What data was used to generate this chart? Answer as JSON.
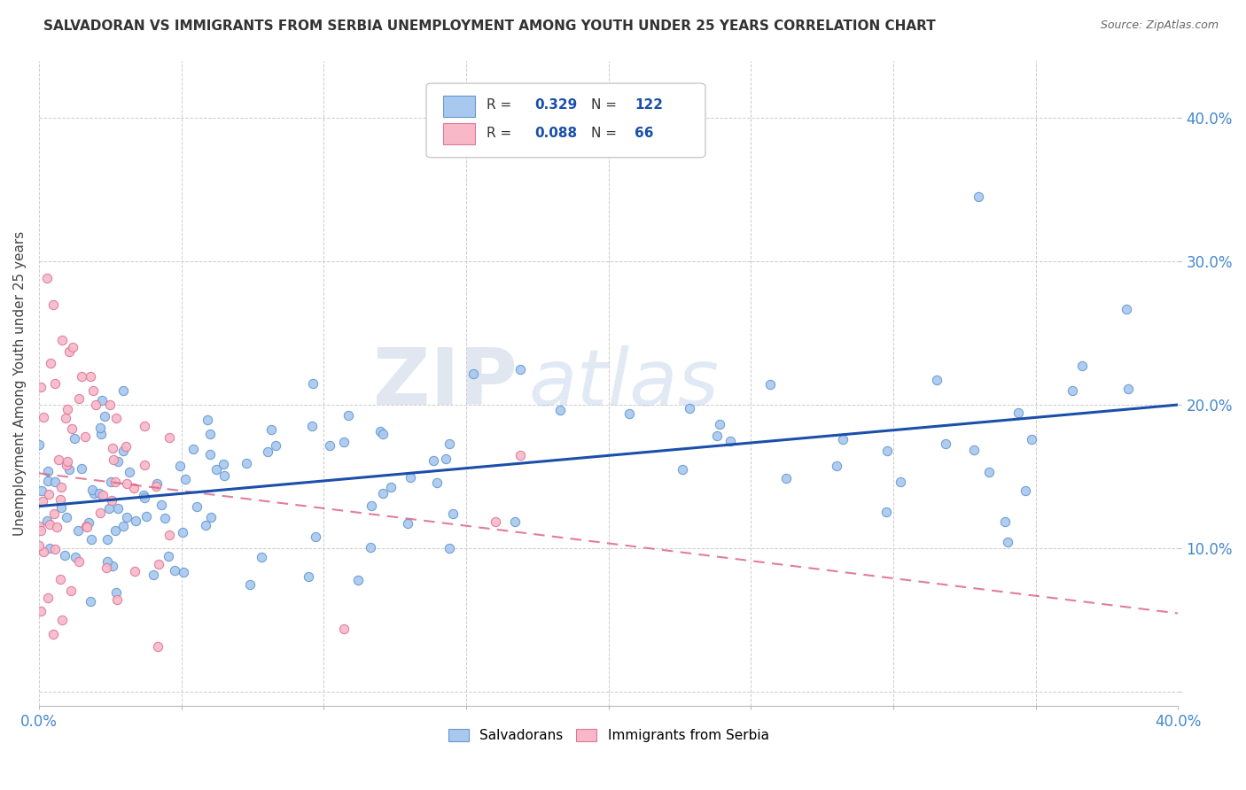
{
  "title": "SALVADORAN VS IMMIGRANTS FROM SERBIA UNEMPLOYMENT AMONG YOUTH UNDER 25 YEARS CORRELATION CHART",
  "source": "Source: ZipAtlas.com",
  "ylabel": "Unemployment Among Youth under 25 years",
  "xlim": [
    0.0,
    0.4
  ],
  "ylim": [
    -0.01,
    0.44
  ],
  "R1": 0.329,
  "N1": 122,
  "R2": 0.088,
  "N2": 66,
  "legend1": "Salvadorans",
  "legend2": "Immigrants from Serbia",
  "series1_color": "#a8c8f0",
  "series1_edge": "#6699cc",
  "series2_color": "#f8b8c8",
  "series2_edge": "#dd7799",
  "trend1_color": "#1a4faa",
  "trend2_color": "#dd6688",
  "watermark_zip_color": "#d0d8e8",
  "watermark_atlas_color": "#c8d4e8",
  "background_color": "#ffffff",
  "grid_color": "#cccccc",
  "tick_color": "#4488cc",
  "title_color": "#333333",
  "ylabel_color": "#444444",
  "source_color": "#666666"
}
